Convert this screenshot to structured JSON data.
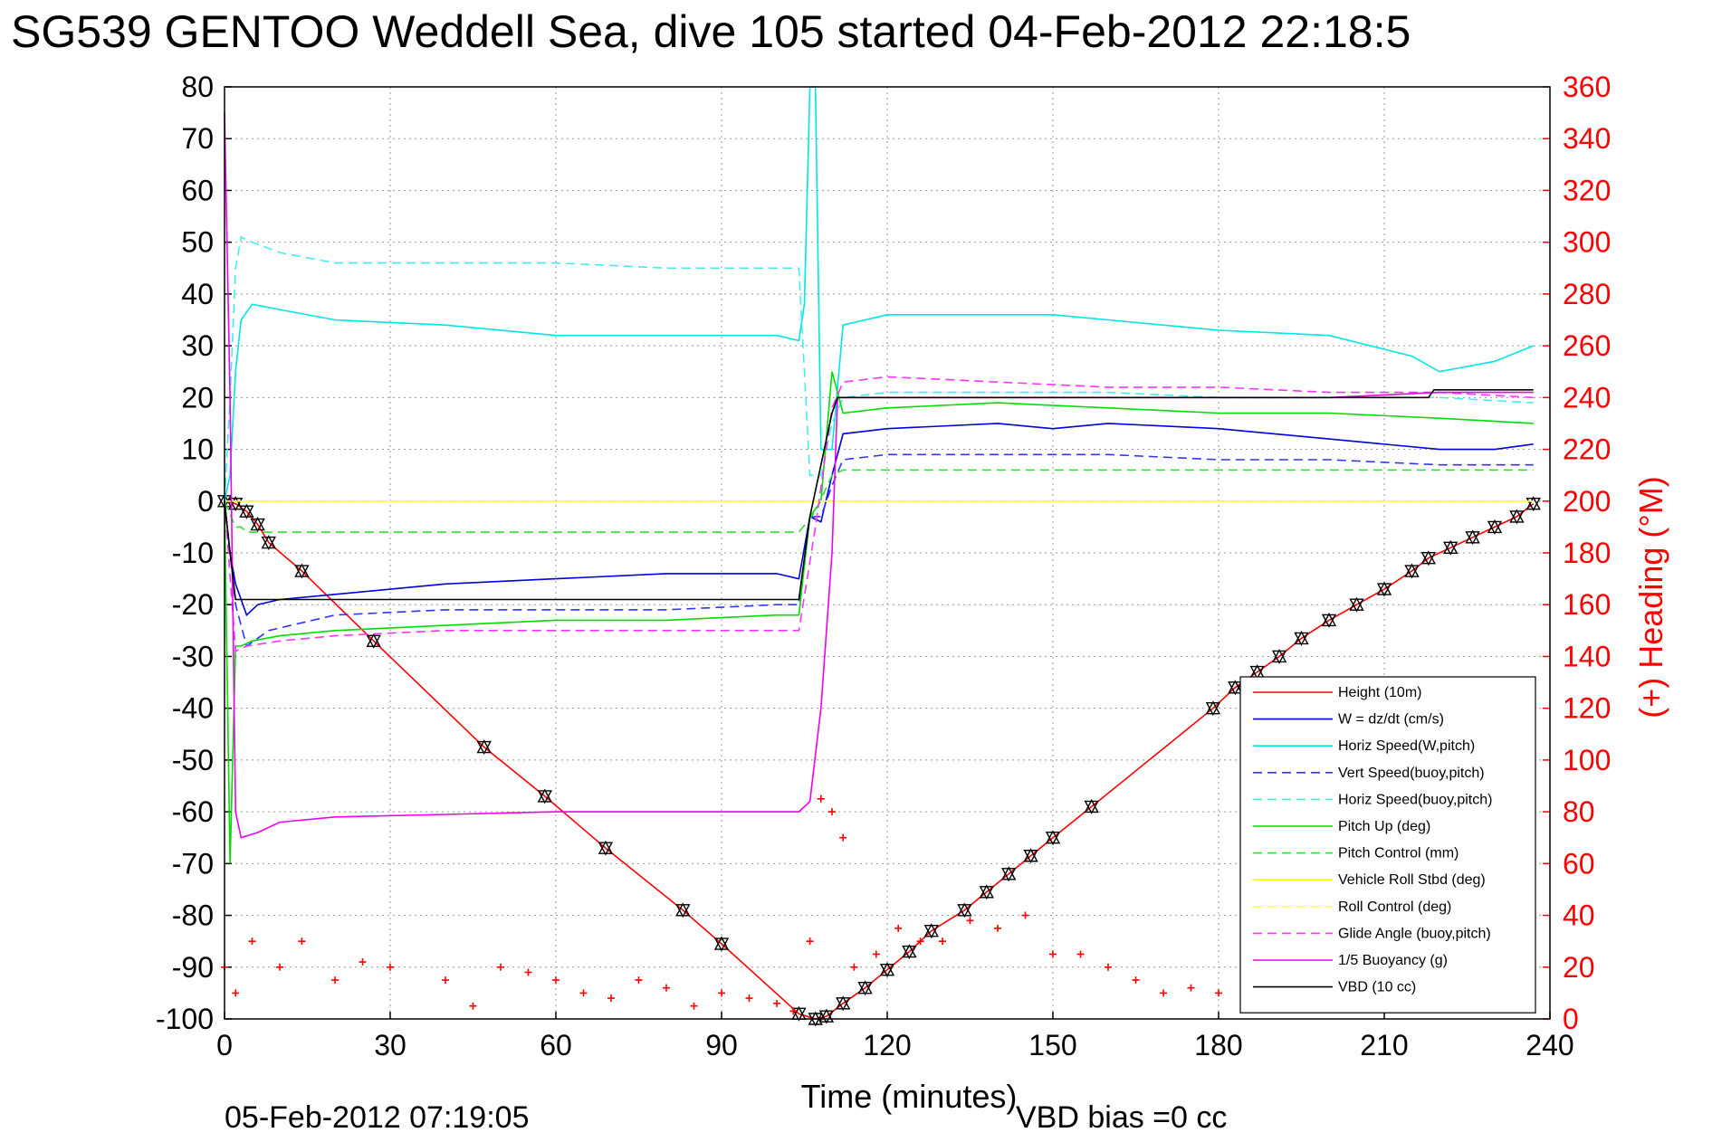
{
  "page": {
    "title": "SG539 GENTOO Weddell Sea, dive 105 started 04-Feb-2012 22:18:5",
    "timestamp": "05-Feb-2012 07:19:05",
    "vbd_bias": "VBD bias =0 cc"
  },
  "chart_data": {
    "type": "line",
    "title": "SG539 GENTOO Weddell Sea, dive 105 started 04-Feb-2012 22:18:5",
    "xlabel": "Time (minutes)",
    "ylabel_left": "",
    "ylabel_right": "(+) Heading (°M)",
    "xlim": [
      0,
      240
    ],
    "ylim": [
      -100,
      80
    ],
    "ylim_right": [
      0,
      360
    ],
    "x_ticks": [
      "0",
      "30",
      "60",
      "90",
      "120",
      "150",
      "180",
      "210",
      "240"
    ],
    "y_ticks": [
      "80",
      "70",
      "60",
      "50",
      "40",
      "30",
      "20",
      "10",
      "0",
      "-10",
      "-20",
      "-30",
      "-40",
      "-50",
      "-60",
      "-70",
      "-80",
      "-90",
      "-100"
    ],
    "y_ticks_right": [
      "360",
      "340",
      "320",
      "300",
      "280",
      "260",
      "240",
      "220",
      "200",
      "180",
      "160",
      "140",
      "120",
      "100",
      "80",
      "60",
      "40",
      "20",
      "0"
    ],
    "grid": true,
    "legend_placement": "bottom-right",
    "series": [
      {
        "name": "Height (10m)",
        "color": "#ff0000",
        "style": "solid",
        "marker": "triangle-black",
        "x": [
          0,
          2,
          4,
          6,
          8,
          14,
          27,
          47,
          58,
          69,
          83,
          90,
          104,
          107,
          109,
          112,
          116,
          120,
          124,
          128,
          134,
          138,
          142,
          146,
          150,
          157,
          179,
          183,
          187,
          191,
          195,
          200,
          205,
          210,
          215,
          218,
          222,
          226,
          230,
          234,
          237
        ],
        "y": [
          0,
          -0.5,
          -2,
          -4.5,
          -8,
          -13.5,
          -27,
          -47.5,
          -57,
          -67,
          -79,
          -85.5,
          -99,
          -100,
          -99.5,
          -97,
          -94,
          -90.5,
          -87,
          -83,
          -79,
          -75.5,
          -72,
          -68.5,
          -65,
          -59,
          -40,
          -36,
          -33,
          -30,
          -26.5,
          -23,
          -20,
          -17,
          -13.5,
          -11,
          -9,
          -7,
          -5,
          -3,
          -0.5
        ]
      },
      {
        "name": "W = dz/dt (cm/s)",
        "color": "#0000dd",
        "style": "solid",
        "x": [
          0,
          1,
          2,
          4,
          6,
          10,
          20,
          40,
          60,
          80,
          100,
          104,
          106,
          108,
          110,
          112,
          120,
          140,
          150,
          160,
          180,
          200,
          220,
          230,
          237
        ],
        "y": [
          0,
          -10,
          -16,
          -22,
          -20,
          -19,
          -18,
          -16,
          -15,
          -14,
          -14,
          -15,
          -3,
          -4,
          5,
          13,
          14,
          15,
          14,
          15,
          14,
          12,
          10,
          10,
          11
        ]
      },
      {
        "name": "Horiz Speed(W,pitch)",
        "color": "#00e5e5",
        "style": "solid",
        "x": [
          0,
          1,
          2,
          3,
          5,
          10,
          20,
          40,
          60,
          80,
          100,
          104,
          105,
          106,
          107,
          108,
          110,
          112,
          120,
          140,
          150,
          160,
          180,
          200,
          215,
          220,
          230,
          237
        ],
        "y": [
          0,
          5,
          25,
          35,
          38,
          37,
          35,
          34,
          32,
          32,
          32,
          31,
          38,
          80,
          80,
          10,
          10,
          34,
          36,
          36,
          36,
          35,
          33,
          32,
          28,
          25,
          27,
          30
        ]
      },
      {
        "name": "Vert Speed(buoy,pitch)",
        "color": "#3333ff",
        "style": "dashed",
        "x": [
          0,
          2,
          4,
          8,
          20,
          40,
          60,
          80,
          100,
          104,
          106,
          108,
          110,
          112,
          120,
          140,
          160,
          180,
          200,
          220,
          237
        ],
        "y": [
          0,
          -20,
          -28,
          -25,
          -22,
          -21,
          -21,
          -21,
          -20,
          -20,
          -3,
          -3,
          3,
          8,
          9,
          9,
          9,
          8,
          8,
          7,
          7
        ]
      },
      {
        "name": "Horiz Speed(buoy,pitch)",
        "color": "#44eeee",
        "style": "dashed",
        "x": [
          0,
          1,
          2,
          3,
          5,
          10,
          20,
          40,
          60,
          80,
          100,
          104,
          106,
          108,
          110,
          112,
          120,
          140,
          160,
          180,
          200,
          220,
          237
        ],
        "y": [
          0,
          20,
          45,
          51,
          50,
          48,
          46,
          46,
          46,
          45,
          45,
          45,
          5,
          5,
          15,
          20,
          21,
          21,
          21,
          20,
          20,
          20,
          19
        ]
      },
      {
        "name": "Pitch Up (deg)",
        "color": "#00dd00",
        "style": "solid",
        "x": [
          0,
          1,
          2,
          3,
          5,
          10,
          20,
          40,
          60,
          80,
          100,
          104,
          106,
          108,
          110,
          112,
          120,
          140,
          160,
          180,
          200,
          220,
          237
        ],
        "y": [
          0,
          -70,
          -28,
          -28,
          -27,
          -26,
          -25,
          -24,
          -23,
          -23,
          -22,
          -22,
          -3,
          0,
          25,
          17,
          18,
          19,
          18,
          17,
          17,
          16,
          15
        ]
      },
      {
        "name": "Pitch Control (mm)",
        "color": "#33dd33",
        "style": "dashed",
        "x": [
          0,
          2,
          3,
          4,
          10,
          20,
          40,
          60,
          80,
          100,
          104,
          107,
          110,
          112,
          120,
          140,
          160,
          180,
          200,
          220,
          237
        ],
        "y": [
          0,
          -5,
          -5,
          -6,
          -6,
          -6,
          -6,
          -6,
          -6,
          -6,
          -6,
          -2,
          5,
          6,
          6,
          6,
          6,
          6,
          6,
          6,
          6
        ]
      },
      {
        "name": "Vehicle Roll Stbd (deg)",
        "color": "#ffff00",
        "style": "solid",
        "x": [
          0,
          2,
          10,
          20,
          40,
          60,
          80,
          100,
          104,
          110,
          120,
          140,
          160,
          180,
          200,
          220,
          237
        ],
        "y": [
          0,
          0,
          0,
          0,
          0,
          0,
          0,
          0,
          0,
          0,
          0,
          0,
          0,
          0,
          0,
          0,
          0
        ]
      },
      {
        "name": "Roll Control (deg)",
        "color": "#ffff66",
        "style": "dashed",
        "x": [
          0,
          237
        ],
        "y": [
          0,
          0
        ]
      },
      {
        "name": "Glide Angle (buoy,pitch)",
        "color": "#ff33ff",
        "style": "dashed",
        "x": [
          0,
          2,
          4,
          10,
          20,
          40,
          60,
          80,
          100,
          104,
          107,
          110,
          112,
          120,
          140,
          160,
          180,
          200,
          220,
          237
        ],
        "y": [
          0,
          -29,
          -28,
          -27,
          -26,
          -25,
          -25,
          -25,
          -25,
          -25,
          -5,
          18,
          23,
          24,
          23,
          22,
          22,
          21,
          21,
          20
        ]
      },
      {
        "name": "1/5 Buoyancy (g)",
        "color": "#ee00ee",
        "style": "solid",
        "x": [
          0,
          1,
          2,
          3,
          6,
          10,
          20,
          40,
          60,
          80,
          100,
          104,
          106,
          108,
          110,
          111,
          120,
          140,
          160,
          180,
          200,
          220,
          237
        ],
        "y": [
          75,
          20,
          -60,
          -65,
          -64,
          -62,
          -61,
          -60.5,
          -60,
          -60,
          -60,
          -60,
          -58,
          -40,
          -10,
          20,
          20,
          20,
          20,
          20,
          20,
          21,
          21
        ]
      },
      {
        "name": "VBD (10 cc)",
        "color": "#000000",
        "style": "solid",
        "x": [
          0,
          1,
          2,
          3,
          104,
          106,
          110,
          111,
          218,
          219,
          237
        ],
        "y": [
          0,
          -10,
          -19,
          -19,
          -19,
          -3,
          17,
          20,
          20,
          21.5,
          21.5
        ]
      },
      {
        "name": "Heading",
        "axis": "right",
        "color": "#ff0000",
        "style": "markers-plus",
        "x": [
          0,
          2,
          5,
          10,
          14,
          20,
          25,
          30,
          40,
          45,
          50,
          55,
          60,
          65,
          70,
          75,
          80,
          85,
          90,
          95,
          100,
          103,
          106,
          108,
          110,
          112,
          114,
          118,
          122,
          126,
          130,
          135,
          140,
          145,
          150,
          155,
          160,
          165,
          170,
          175,
          180,
          185,
          190,
          195,
          200,
          205,
          210,
          215,
          220,
          225,
          230,
          235
        ],
        "y": [
          20,
          10,
          30,
          20,
          30,
          15,
          22,
          20,
          15,
          5,
          20,
          18,
          15,
          10,
          8,
          15,
          12,
          5,
          10,
          8,
          6,
          3,
          30,
          85,
          80,
          70,
          20,
          25,
          35,
          30,
          30,
          38,
          35,
          40,
          25,
          25,
          20,
          15,
          10,
          12,
          10,
          20,
          10,
          15,
          12,
          10,
          15,
          12,
          10,
          12,
          15,
          10
        ]
      }
    ]
  }
}
